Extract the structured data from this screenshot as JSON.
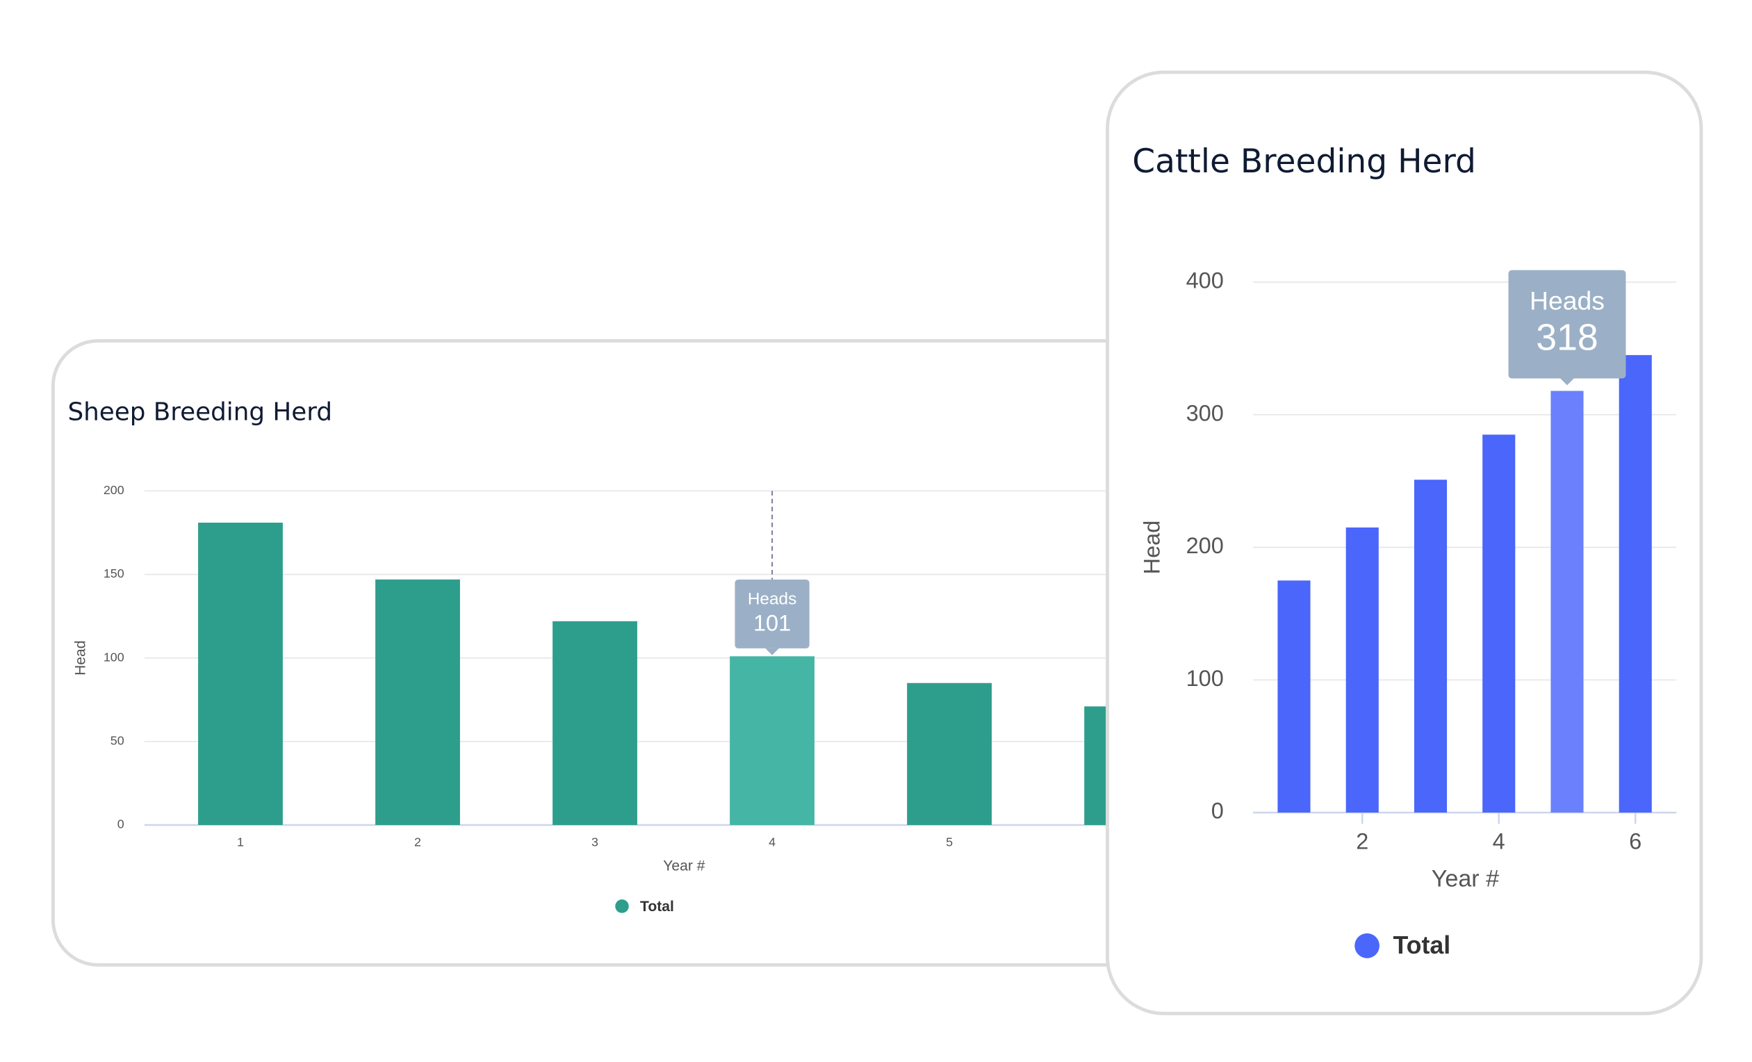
{
  "chart_data": [
    {
      "type": "bar",
      "title": "Sheep Breeding Herd",
      "categories": [
        "1",
        "2",
        "3",
        "4",
        "5",
        null
      ],
      "series": [
        {
          "name": "Total",
          "color": "#2e9e8c",
          "values": [
            181,
            147,
            122,
            101,
            85,
            71
          ]
        }
      ],
      "highlight_color": "#45b5a6",
      "ylim": [
        0,
        200
      ],
      "yticks": [
        0,
        50,
        100,
        150,
        200
      ],
      "xlabel": "Year #",
      "ylabel": "Head",
      "grid": true,
      "tooltip": {
        "label": "Heads",
        "category": "4"
      }
    },
    {
      "type": "bar",
      "title": "Cattle Breeding Herd",
      "x": [
        1,
        2,
        3,
        4,
        5,
        6
      ],
      "series": [
        {
          "name": "Total",
          "color": "#4a66fb",
          "values": [
            175,
            215,
            251,
            285,
            318,
            345
          ]
        }
      ],
      "highlight_color": "#6a80fc",
      "xlim": [
        0.4,
        6.6
      ],
      "xticks": [
        2,
        4,
        6
      ],
      "ylim": [
        0,
        400
      ],
      "yticks": [
        0,
        100,
        200,
        300,
        400
      ],
      "xlabel": "Year #",
      "ylabel": "Head",
      "grid": true,
      "tooltip": {
        "label": "Heads",
        "x": 5
      }
    }
  ]
}
